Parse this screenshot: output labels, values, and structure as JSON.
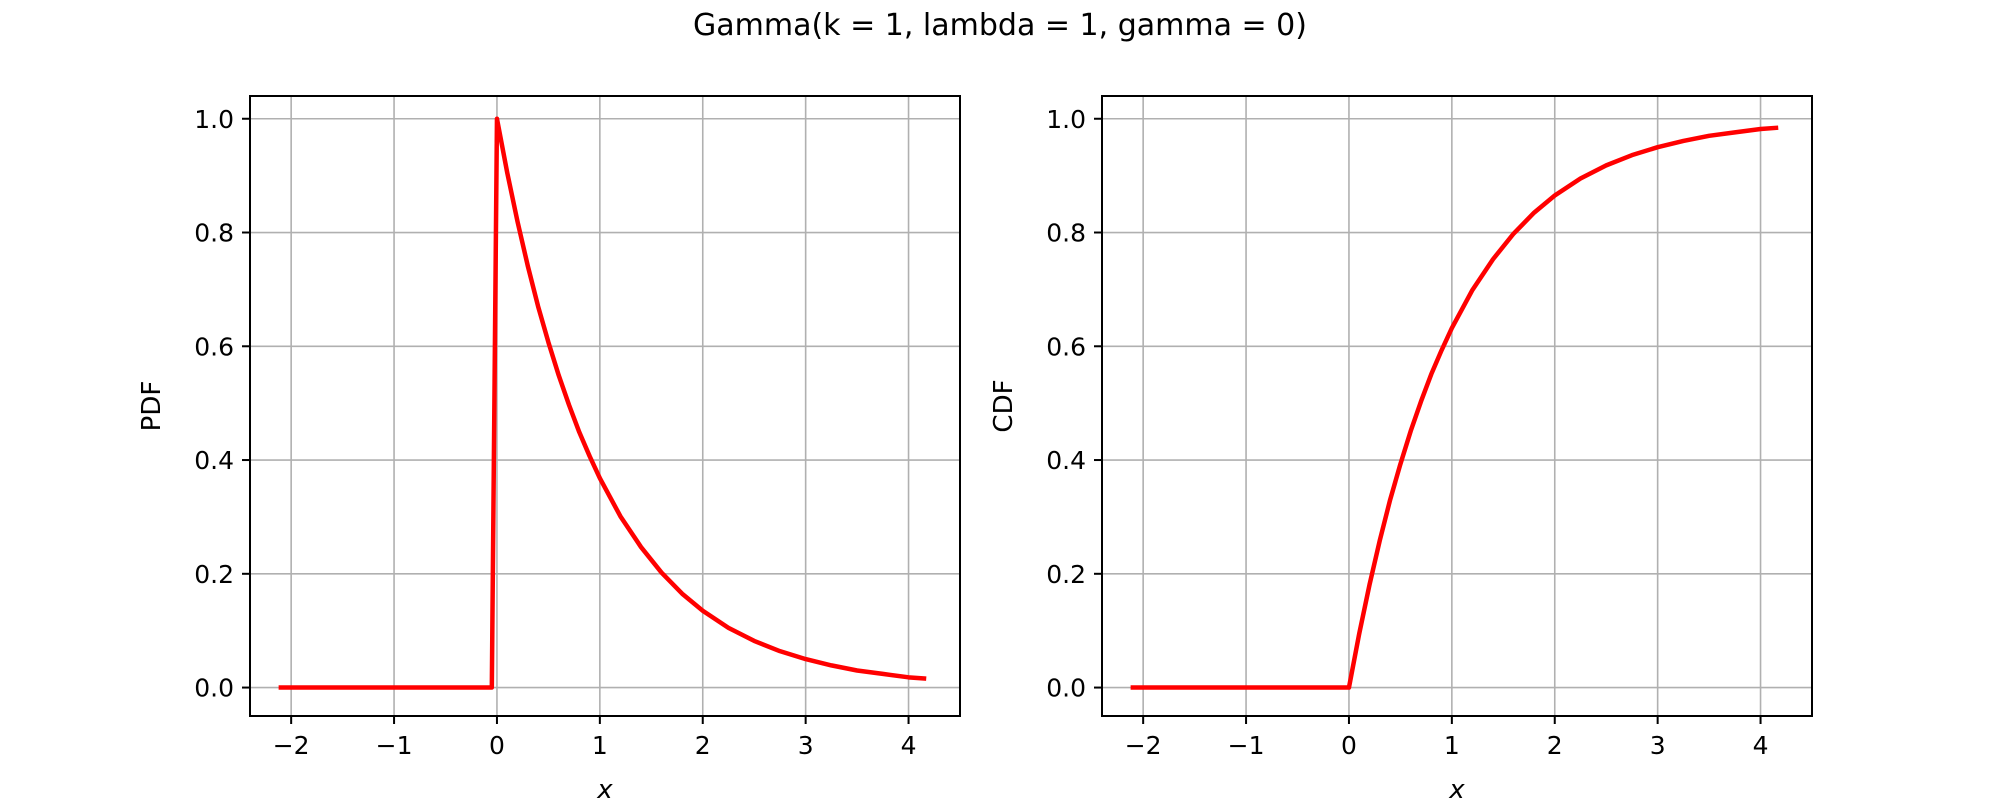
{
  "figure": {
    "suptitle": "Gamma(k = 1, lambda = 1, gamma = 0)"
  },
  "colors": {
    "curve": "#ff0000",
    "grid": "#b0b0b0",
    "axes": "#000000"
  },
  "chart_data": [
    {
      "type": "line",
      "title": "",
      "xlabel": "x",
      "ylabel": "PDF",
      "xlim": [
        -2.4,
        4.5
      ],
      "ylim": [
        -0.05,
        1.04
      ],
      "xticks": [
        -2,
        -1,
        0,
        1,
        2,
        3,
        4
      ],
      "xtick_labels": [
        "−2",
        "−1",
        "0",
        "1",
        "2",
        "3",
        "4"
      ],
      "yticks": [
        0.0,
        0.2,
        0.4,
        0.6,
        0.8,
        1.0
      ],
      "ytick_labels": [
        "0.0",
        "0.2",
        "0.4",
        "0.6",
        "0.8",
        "1.0"
      ],
      "grid": true,
      "series": [
        {
          "color": "#ff0000",
          "x": [
            -2.1,
            -1.5,
            -1.0,
            -0.5,
            -0.05,
            0.0,
            0.1,
            0.2,
            0.3,
            0.4,
            0.5,
            0.6,
            0.7,
            0.8,
            0.9,
            1.0,
            1.2,
            1.4,
            1.6,
            1.8,
            2.0,
            2.25,
            2.5,
            2.75,
            3.0,
            3.25,
            3.5,
            3.75,
            4.0,
            4.15
          ],
          "y": [
            0.0,
            0.0,
            0.0,
            0.0,
            0.0,
            1.0,
            0.905,
            0.819,
            0.741,
            0.67,
            0.607,
            0.549,
            0.497,
            0.449,
            0.407,
            0.368,
            0.301,
            0.247,
            0.202,
            0.165,
            0.135,
            0.105,
            0.082,
            0.064,
            0.05,
            0.039,
            0.03,
            0.024,
            0.018,
            0.016
          ]
        }
      ]
    },
    {
      "type": "line",
      "title": "",
      "xlabel": "x",
      "ylabel": "CDF",
      "xlim": [
        -2.4,
        4.5
      ],
      "ylim": [
        -0.05,
        1.04
      ],
      "xticks": [
        -2,
        -1,
        0,
        1,
        2,
        3,
        4
      ],
      "xtick_labels": [
        "−2",
        "−1",
        "0",
        "1",
        "2",
        "3",
        "4"
      ],
      "yticks": [
        0.0,
        0.2,
        0.4,
        0.6,
        0.8,
        1.0
      ],
      "ytick_labels": [
        "0.0",
        "0.2",
        "0.4",
        "0.6",
        "0.8",
        "1.0"
      ],
      "grid": true,
      "series": [
        {
          "color": "#ff0000",
          "x": [
            -2.1,
            -1.5,
            -1.0,
            -0.5,
            -0.05,
            0.0,
            0.1,
            0.2,
            0.3,
            0.4,
            0.5,
            0.6,
            0.7,
            0.8,
            0.9,
            1.0,
            1.2,
            1.4,
            1.6,
            1.8,
            2.0,
            2.25,
            2.5,
            2.75,
            3.0,
            3.25,
            3.5,
            3.75,
            4.0,
            4.15
          ],
          "y": [
            0.0,
            0.0,
            0.0,
            0.0,
            0.0,
            0.0,
            0.095,
            0.181,
            0.259,
            0.33,
            0.393,
            0.451,
            0.503,
            0.551,
            0.593,
            0.632,
            0.699,
            0.753,
            0.798,
            0.835,
            0.865,
            0.895,
            0.918,
            0.936,
            0.95,
            0.961,
            0.97,
            0.976,
            0.982,
            0.984
          ]
        }
      ]
    }
  ]
}
